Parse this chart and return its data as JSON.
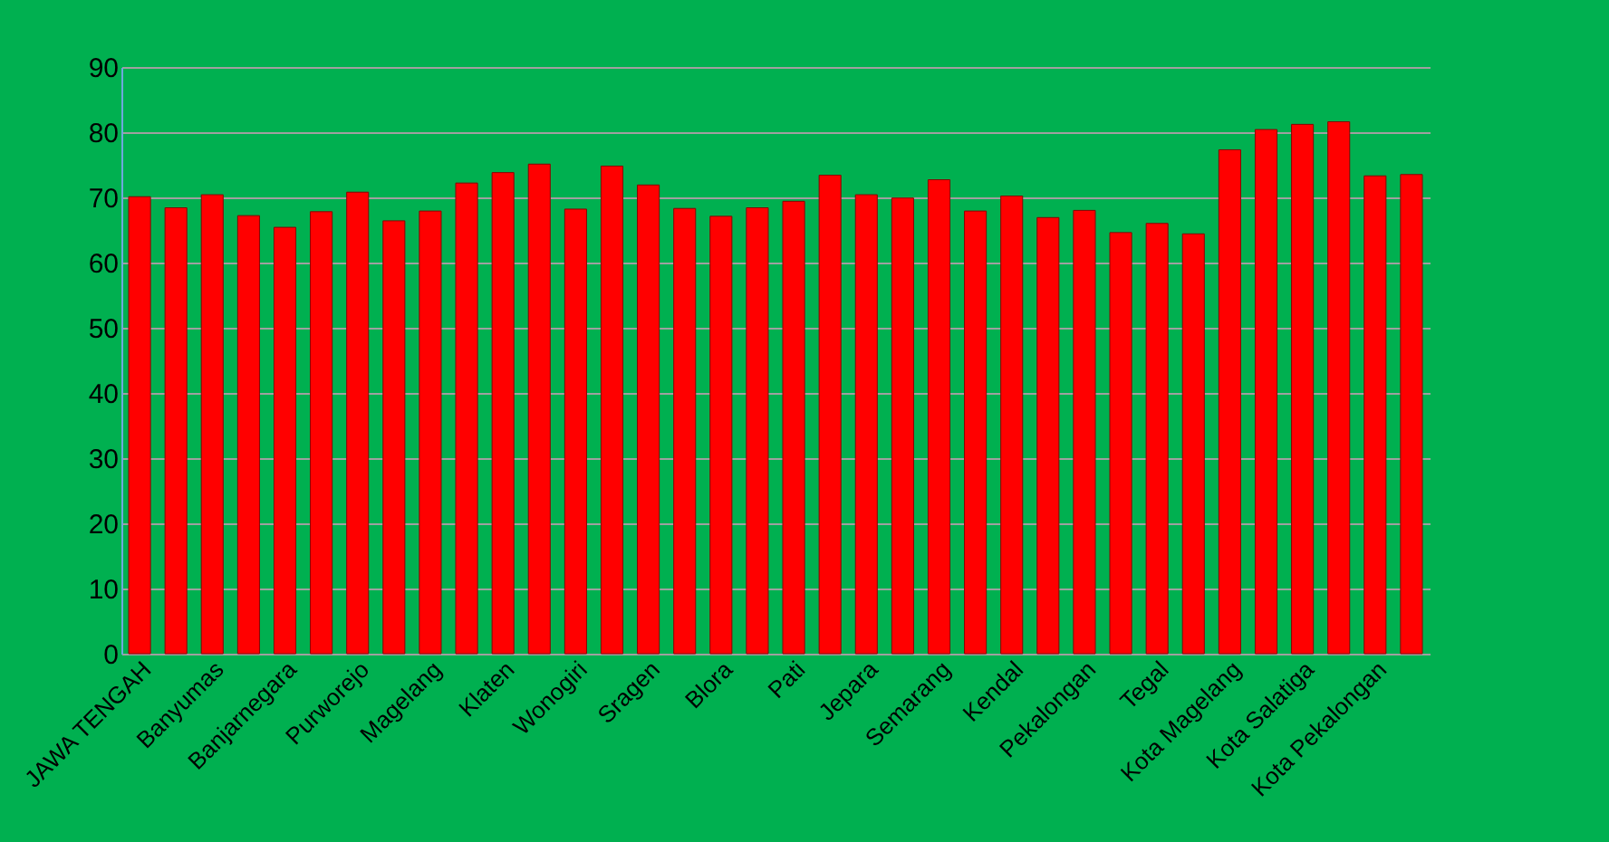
{
  "chart_data": {
    "type": "bar",
    "categories": [
      "JAWA TENGAH",
      null,
      "Banyumas",
      null,
      "Banjarnegara",
      null,
      "Purworejo",
      null,
      "Magelang",
      null,
      "Klaten",
      null,
      "Wonogiri",
      null,
      "Sragen",
      null,
      "Blora",
      null,
      "Pati",
      null,
      "Jepara",
      null,
      "Semarang",
      null,
      "Kendal",
      null,
      "Pekalongan",
      null,
      "Tegal",
      null,
      "Kota Magelang",
      null,
      "Kota Salatiga",
      null,
      "Kota Pekalongan",
      null
    ],
    "values": [
      70.1,
      68.4,
      70.4,
      67.2,
      65.4,
      67.8,
      70.8,
      66.4,
      67.9,
      72.2,
      73.8,
      75.1,
      68.2,
      74.8,
      71.9,
      68.3,
      67.1,
      68.4,
      69.4,
      73.4,
      70.4,
      69.9,
      72.7,
      67.9,
      70.2,
      66.9,
      68.0,
      64.6,
      66.0,
      64.4,
      77.3,
      80.4,
      81.2,
      81.6,
      73.3,
      73.5
    ],
    "color": "#ff0000",
    "ylim": [
      0,
      90
    ],
    "yticks": [
      0,
      10,
      20,
      30,
      40,
      50,
      60,
      70,
      80,
      90
    ],
    "grid": "y"
  }
}
